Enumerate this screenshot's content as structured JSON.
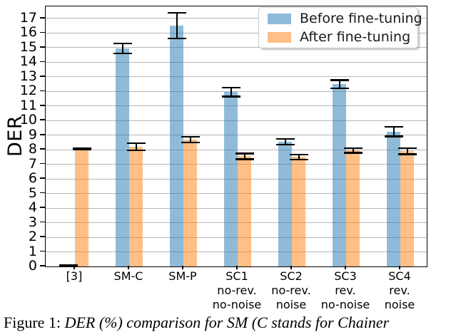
{
  "figure": {
    "caption_prefix": "Figure 1: ",
    "caption_body": "DER (%) comparison for SM (C stands for Chainer"
  },
  "chart_data": {
    "type": "bar",
    "title": "",
    "xlabel": "",
    "ylabel": "DER",
    "ylim": [
      0,
      17.83
    ],
    "ytick_step": 1,
    "ytick_labels": [
      "0",
      "1",
      "2",
      "3",
      "4",
      "5",
      "6",
      "7",
      "8",
      "9",
      "10",
      "11",
      "12",
      "13",
      "14",
      "15",
      "16",
      "17"
    ],
    "grid": true,
    "grid_color": "#b7b7b7",
    "legend_position": "upper right",
    "error_bar_color": "#000000",
    "categories": [
      [
        "[3]"
      ],
      [
        "SM-C"
      ],
      [
        "SM-P"
      ],
      [
        "SC1",
        "no-rev.",
        "no-noise"
      ],
      [
        "SC2",
        "no-rev.",
        "noise"
      ],
      [
        "SC3",
        "rev.",
        "no-noise"
      ],
      [
        "SC4",
        "rev.",
        "noise"
      ]
    ],
    "series": [
      {
        "name": "Before fine-tuning",
        "color": "rgba(31,119,180,0.5)",
        "legend_color": "#8fbbd9",
        "values": [
          0.05,
          14.95,
          16.5,
          11.95,
          8.55,
          12.5,
          9.25
        ],
        "errors": [
          0.03,
          0.35,
          0.88,
          0.3,
          0.2,
          0.28,
          0.33
        ]
      },
      {
        "name": "After fine-tuning",
        "color": "rgba(255,127,14,0.5)",
        "legend_color": "#ffbf86",
        "values": [
          8.05,
          8.2,
          8.7,
          7.55,
          7.5,
          7.95,
          7.9
        ],
        "errors": [
          0.05,
          0.25,
          0.2,
          0.2,
          0.17,
          0.15,
          0.2
        ]
      }
    ]
  }
}
